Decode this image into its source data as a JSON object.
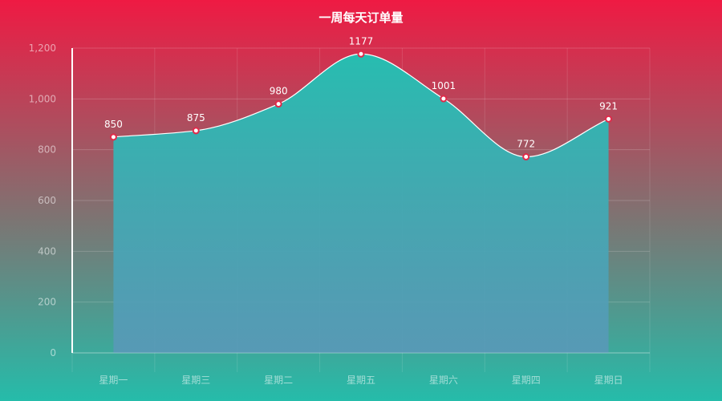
{
  "chart_data": {
    "type": "area",
    "title": "一周每天订单量",
    "categories": [
      "星期一",
      "星期三",
      "星期二",
      "星期五",
      "星期六",
      "星期四",
      "星期日"
    ],
    "series": [
      {
        "values": [
          850,
          875,
          980,
          1177,
          1001,
          772,
          921
        ]
      }
    ],
    "y_ticks": [
      "0",
      "200",
      "400",
      "600",
      "800",
      "1,000",
      "1,200"
    ],
    "ylim": [
      0,
      1200
    ],
    "grid": true,
    "smooth": true,
    "colors": {
      "background_top": "#ef1a43",
      "background_bottom": "#25bcaa",
      "area_top": "#27bdb0",
      "area_bottom": "#5a98b8",
      "line": "#ffffff",
      "marker_fill": "#ffffff",
      "marker_stroke": "#e02a4a"
    }
  }
}
